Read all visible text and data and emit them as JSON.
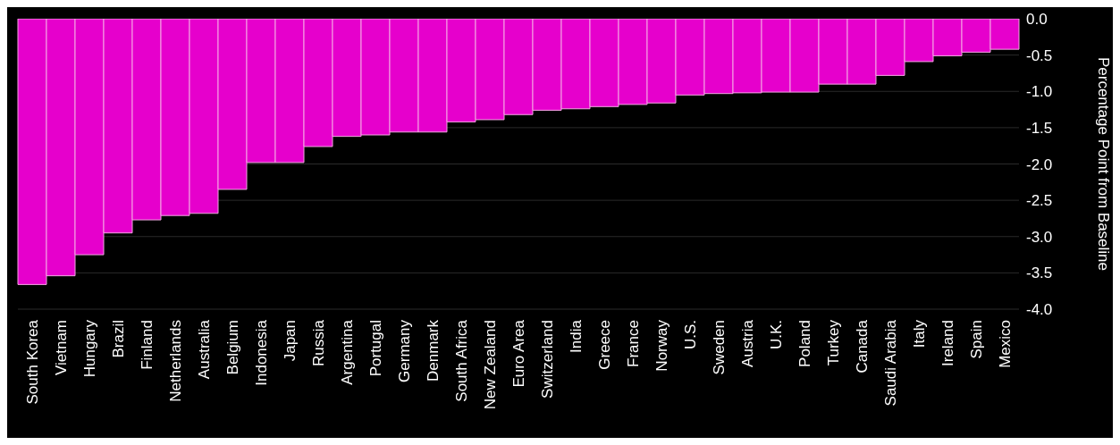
{
  "chart_data": {
    "type": "bar",
    "ylabel": "Percentage Point from Baseline",
    "categories": [
      "South Korea",
      "Vietnam",
      "Hungary",
      "Brazil",
      "Finland",
      "Netherlands",
      "Australia",
      "Belgium",
      "Indonesia",
      "Japan",
      "Russia",
      "Argentina",
      "Portugal",
      "Germany",
      "Denmark",
      "South Africa",
      "New Zealand",
      "Euro Area",
      "Switzerland",
      "India",
      "Greece",
      "France",
      "Norway",
      "U.S.",
      "Sweden",
      "Austria",
      "U.K.",
      "Poland",
      "Turkey",
      "Canada",
      "Saudi Arabia",
      "Italy",
      "Ireland",
      "Spain",
      "Mexico"
    ],
    "values": [
      -3.66,
      -3.54,
      -3.25,
      -2.95,
      -2.77,
      -2.71,
      -2.68,
      -2.35,
      -1.98,
      -1.98,
      -1.76,
      -1.62,
      -1.6,
      -1.56,
      -1.56,
      -1.42,
      -1.39,
      -1.32,
      -1.26,
      -1.24,
      -1.21,
      -1.18,
      -1.16,
      -1.05,
      -1.03,
      -1.02,
      -1.01,
      -1.01,
      -0.9,
      -0.9,
      -0.78,
      -0.59,
      -0.51,
      -0.46,
      -0.42
    ],
    "color": "#e600cc",
    "ylim": [
      -4,
      0
    ],
    "yticks": [
      {
        "value": 0,
        "label": "0.0"
      },
      {
        "value": -0.5,
        "label": "-0.5"
      },
      {
        "value": -1,
        "label": "-1.0"
      },
      {
        "value": -1.5,
        "label": "-1.5"
      },
      {
        "value": -2,
        "label": "-2.0"
      },
      {
        "value": -2.5,
        "label": "-2.5"
      },
      {
        "value": -3,
        "label": "-3.0"
      },
      {
        "value": -3.5,
        "label": "-3.5"
      },
      {
        "value": -4,
        "label": "-4.0"
      }
    ],
    "grid": "y"
  }
}
